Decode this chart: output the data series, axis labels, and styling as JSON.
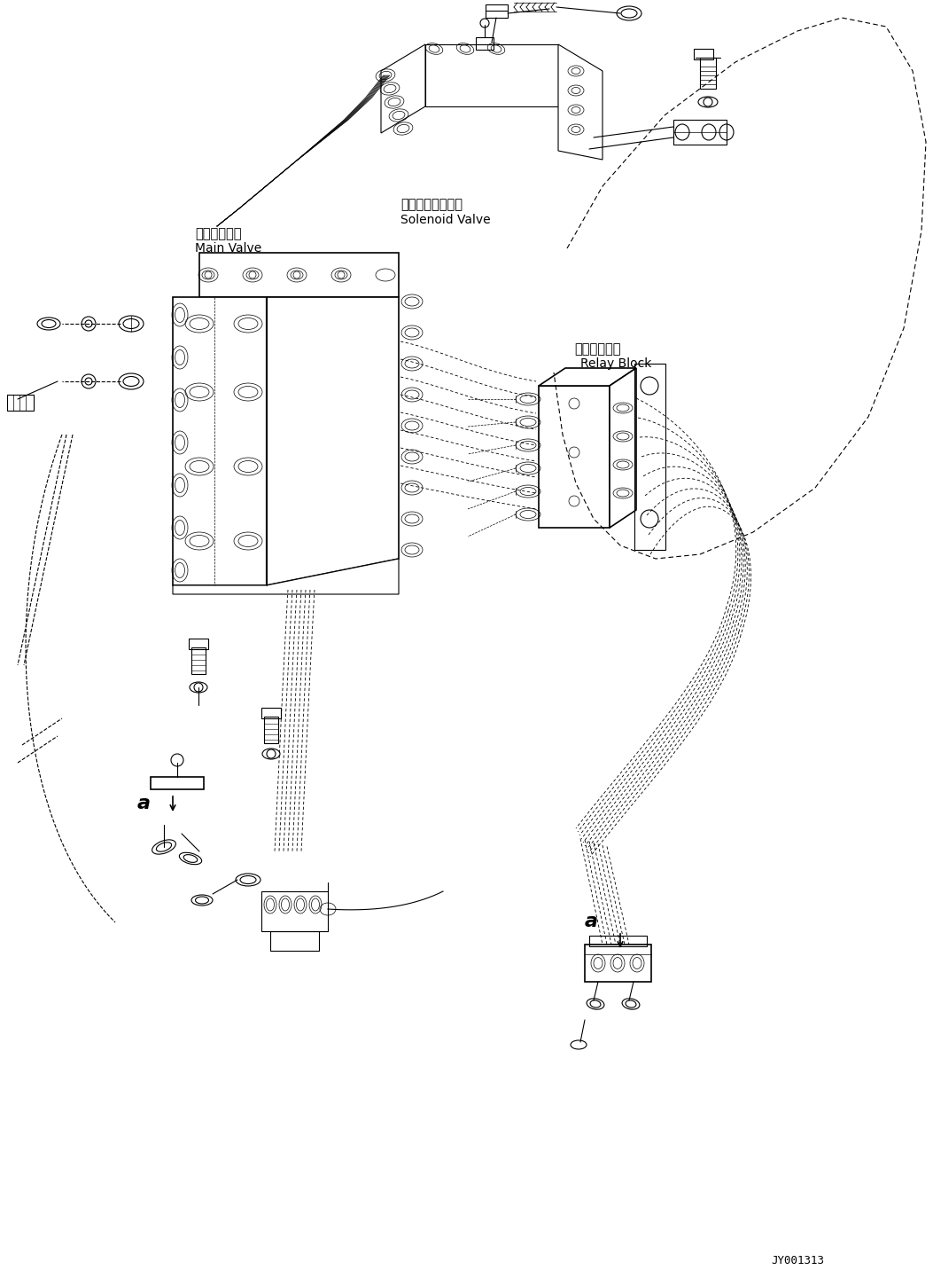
{
  "bg_color": "#ffffff",
  "line_color": "#000000",
  "fig_width": 10.53,
  "fig_height": 14.41,
  "dpi": 100,
  "watermark": "JY001313",
  "labels": {
    "solenoid_jp": "ソレノイドバルブ",
    "solenoid_en": "Solenoid Valve",
    "mainvalve_jp": "メインバルブ",
    "mainvalve_en": "Main Valve",
    "relay_jp": "中継ブロック",
    "relay_en": "Relay Block",
    "label_a1": "a",
    "label_a2": "a"
  }
}
